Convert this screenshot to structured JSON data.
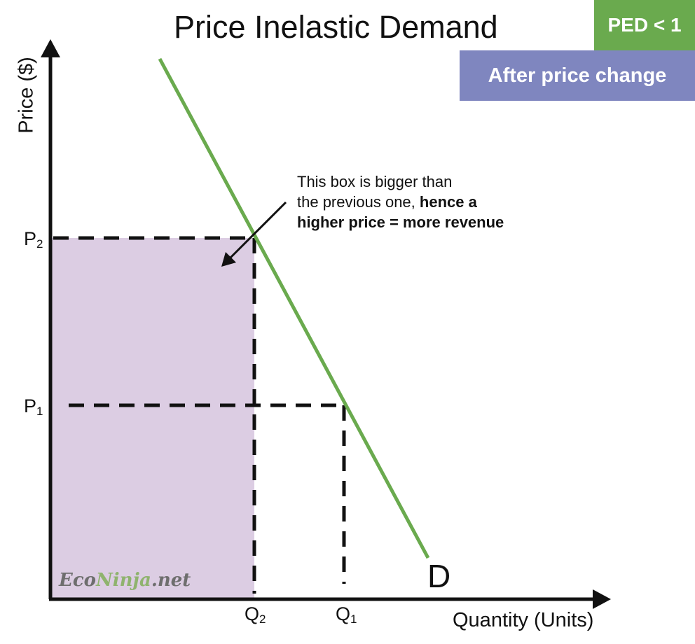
{
  "title": "Price Inelastic Demand",
  "badges": {
    "ped": "PED < 1",
    "state": "After price change"
  },
  "axes": {
    "y_label": "Price ($)",
    "x_label": "Quantity (Units)"
  },
  "ticks": {
    "p2": {
      "base": "P",
      "sub": "2"
    },
    "p1": {
      "base": "P",
      "sub": "1"
    },
    "q2": {
      "base": "Q",
      "sub": "2"
    },
    "q1": {
      "base": "Q",
      "sub": "1"
    }
  },
  "curve_label": "D",
  "annotation": {
    "line1": "This box is bigger than",
    "line2_plain": "the previous one, ",
    "line2_bold": "hence a",
    "line3_bold": "higher price = more revenue"
  },
  "watermark": {
    "part1": "Eco",
    "part2": "Ninja",
    "part3": ".net"
  },
  "colors": {
    "demand_curve": "#6aaa4e",
    "revenue_box": "#dccde3",
    "ped_badge": "#6aaa4e",
    "state_badge": "#7f86bf",
    "axes": "#111111"
  }
}
